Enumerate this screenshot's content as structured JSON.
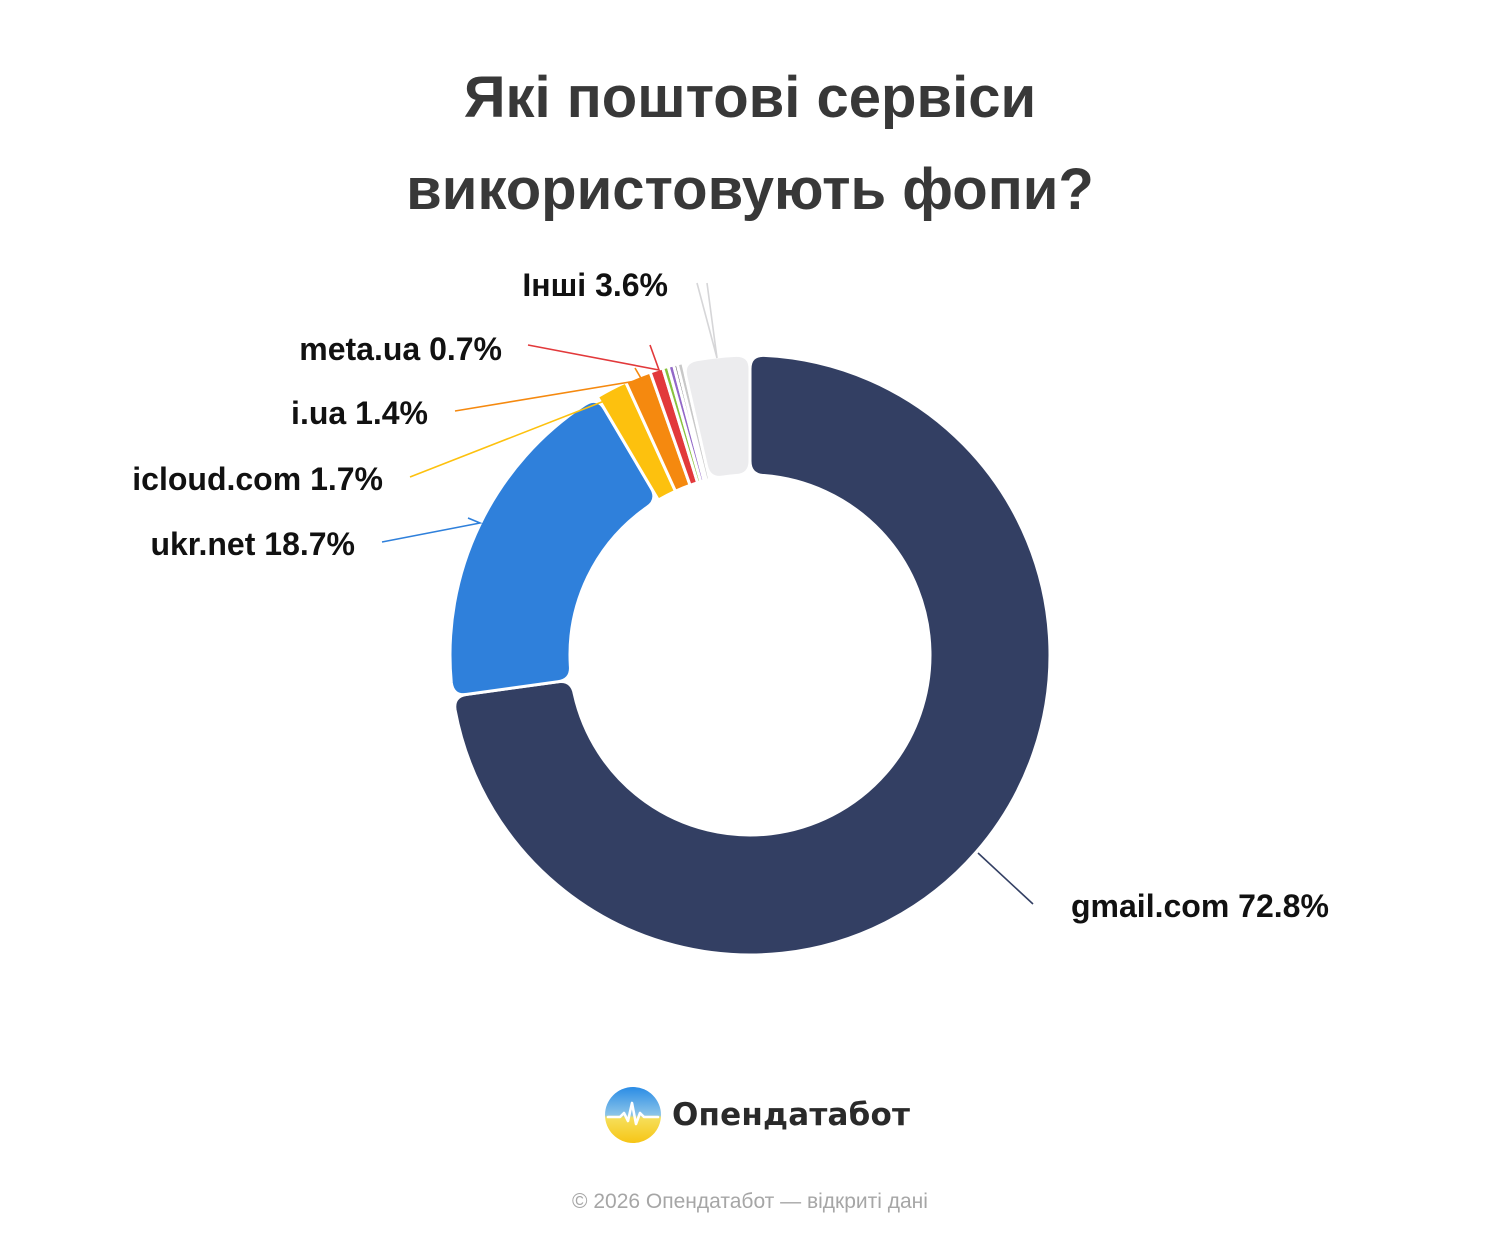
{
  "title_lines": [
    "Які поштові сервіси",
    "використовують фопи?"
  ],
  "chart_data": {
    "type": "pie",
    "title": "Які поштові сервіси використовують фопи?",
    "labels": [
      "gmail.com",
      "ukr.net",
      "icloud.com",
      "i.ua",
      "meta.ua",
      "",
      "",
      "",
      "",
      "Інші"
    ],
    "values": [
      72.8,
      18.7,
      1.7,
      1.4,
      0.7,
      0.3,
      0.3,
      0.2,
      0.3,
      3.6
    ],
    "colors": [
      "#333f63",
      "#2f80db",
      "#fdc10e",
      "#f5890f",
      "#e2393b",
      "#88c13d",
      "#9268c8",
      "#757575",
      "#c8c8c8",
      "#ececee"
    ],
    "data_labels": [
      {
        "index": 0,
        "text": "gmail.com 72.8%",
        "align": "start",
        "pos": [
          1071,
          917
        ],
        "kink": [
          1033,
          904
        ],
        "anchor": [
          978,
          853
        ]
      },
      {
        "index": 1,
        "text": "ukr.net 18.7%",
        "align": "end",
        "pos": [
          355,
          555
        ],
        "kink": [
          382,
          542
        ],
        "anchor": [
          468,
          518
        ],
        "mid": [
          480,
          523
        ]
      },
      {
        "index": 2,
        "text": "icloud.com 1.7%",
        "align": "end",
        "pos": [
          383,
          490
        ],
        "kink": [
          410,
          477
        ],
        "anchor": [
          612,
          398
        ]
      },
      {
        "index": 3,
        "text": "i.ua 1.4%",
        "align": "end",
        "pos": [
          428,
          424
        ],
        "kink": [
          455,
          411
        ],
        "anchor": [
          635,
          368
        ],
        "mid": [
          642,
          380
        ]
      },
      {
        "index": 4,
        "text": "meta.ua 0.7%",
        "align": "end",
        "pos": [
          502,
          360
        ],
        "kink": [
          528,
          345
        ],
        "anchor": [
          650,
          345
        ],
        "mid": [
          659,
          370
        ]
      },
      {
        "index": 9,
        "text": "Інші 3.6%",
        "align": "end",
        "pos": [
          668,
          296
        ],
        "kink": [
          697,
          283
        ],
        "anchor": [
          707,
          283
        ],
        "mid": [
          717,
          358
        ]
      }
    ],
    "legend": "none"
  },
  "brand": {
    "name": "Опендатабот"
  },
  "footer": {
    "text": "© 2026 Опендатабот — відкриті дані"
  }
}
